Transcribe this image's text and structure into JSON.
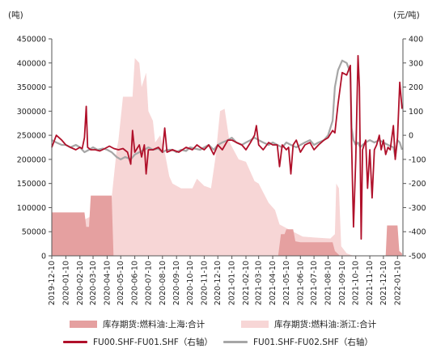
{
  "chart_data": {
    "type": "line",
    "left_unit": "(吨)",
    "right_unit": "(元/吨)",
    "left_axis": {
      "min": 0,
      "max": 450000,
      "ticks": [
        0,
        50000,
        100000,
        150000,
        200000,
        250000,
        300000,
        350000,
        400000,
        450000
      ]
    },
    "right_axis": {
      "min": -500,
      "max": 400,
      "ticks": [
        -500,
        -400,
        -300,
        -200,
        -100,
        0,
        100,
        200,
        300,
        400
      ]
    },
    "x_ticks": [
      "2019-12-10",
      "2020-01-10",
      "2020-02-10",
      "2020-03-10",
      "2020-04-10",
      "2020-05-10",
      "2020-06-10",
      "2020-07-10",
      "2020-08-10",
      "2020-09-10",
      "2020-10-10",
      "2020-11-10",
      "2020-12-10",
      "2021-01-10",
      "2021-02-10",
      "2021-03-10",
      "2021-04-10",
      "2021-05-10",
      "2021-06-10",
      "2021-07-10",
      "2021-08-10",
      "2021-09-10",
      "2021-10-10",
      "2021-11-10",
      "2021-12-10",
      "2022-01-10"
    ],
    "grid": false,
    "legend_position": "bottom",
    "series": [
      {
        "name": "库存期货:燃料油:上海:合计",
        "axis": "left",
        "kind": "area",
        "color": "#e5a0a0",
        "points": [
          [
            "2019-12-10",
            90000
          ],
          [
            "2020-02-20",
            90000
          ],
          [
            "2020-02-24",
            60000
          ],
          [
            "2020-03-01",
            60000
          ],
          [
            "2020-03-05",
            125000
          ],
          [
            "2020-04-20",
            125000
          ],
          [
            "2020-04-24",
            0
          ],
          [
            "2021-04-22",
            0
          ],
          [
            "2021-04-28",
            45000
          ],
          [
            "2021-05-06",
            45000
          ],
          [
            "2021-05-10",
            55000
          ],
          [
            "2021-05-25",
            55000
          ],
          [
            "2021-05-30",
            30000
          ],
          [
            "2021-06-10",
            28000
          ],
          [
            "2021-08-20",
            28000
          ],
          [
            "2021-08-25",
            10000
          ],
          [
            "2021-09-05",
            0
          ],
          [
            "2021-12-15",
            0
          ],
          [
            "2021-12-18",
            63000
          ],
          [
            "2022-01-10",
            63000
          ],
          [
            "2022-01-14",
            10000
          ],
          [
            "2022-01-20",
            5000
          ]
        ]
      },
      {
        "name": "库存期货:燃料油:浙江:合计",
        "axis": "left",
        "kind": "area",
        "color": "#f7d6d6",
        "points": [
          [
            "2019-12-10",
            0
          ],
          [
            "2020-01-20",
            0
          ],
          [
            "2020-01-25",
            60000
          ],
          [
            "2020-02-10",
            70000
          ],
          [
            "2020-03-01",
            80000
          ],
          [
            "2020-04-10",
            90000
          ],
          [
            "2020-04-20",
            120000
          ],
          [
            "2020-05-01",
            220000
          ],
          [
            "2020-05-05",
            240000
          ],
          [
            "2020-05-15",
            330000
          ],
          [
            "2020-06-05",
            330000
          ],
          [
            "2020-06-10",
            410000
          ],
          [
            "2020-06-20",
            400000
          ],
          [
            "2020-06-25",
            350000
          ],
          [
            "2020-07-05",
            380000
          ],
          [
            "2020-07-10",
            300000
          ],
          [
            "2020-07-20",
            280000
          ],
          [
            "2020-07-25",
            235000
          ],
          [
            "2020-08-05",
            250000
          ],
          [
            "2020-08-15",
            215000
          ],
          [
            "2020-08-25",
            165000
          ],
          [
            "2020-09-01",
            150000
          ],
          [
            "2020-09-20",
            140000
          ],
          [
            "2020-10-15",
            140000
          ],
          [
            "2020-10-25",
            160000
          ],
          [
            "2020-11-10",
            145000
          ],
          [
            "2020-11-25",
            140000
          ],
          [
            "2020-12-05",
            205000
          ],
          [
            "2020-12-15",
            300000
          ],
          [
            "2020-12-25",
            305000
          ],
          [
            "2021-01-05",
            235000
          ],
          [
            "2021-01-25",
            200000
          ],
          [
            "2021-02-10",
            195000
          ],
          [
            "2021-03-01",
            155000
          ],
          [
            "2021-03-10",
            150000
          ],
          [
            "2021-04-01",
            110000
          ],
          [
            "2021-04-15",
            95000
          ],
          [
            "2021-04-25",
            65000
          ],
          [
            "2021-05-15",
            55000
          ],
          [
            "2021-06-15",
            40000
          ],
          [
            "2021-07-10",
            38000
          ],
          [
            "2021-08-15",
            36000
          ],
          [
            "2021-08-25",
            45000
          ],
          [
            "2021-08-28",
            150000
          ],
          [
            "2021-09-03",
            140000
          ],
          [
            "2021-09-08",
            20000
          ],
          [
            "2021-09-20",
            5000
          ],
          [
            "2021-10-05",
            0
          ],
          [
            "2022-01-20",
            0
          ]
        ]
      },
      {
        "name": "FU00.SHF-FU01.SHF（右轴）",
        "axis": "right",
        "kind": "line",
        "color": "#b0102a",
        "points": [
          [
            "2019-12-10",
            -50
          ],
          [
            "2019-12-20",
            0
          ],
          [
            "2020-01-01",
            -20
          ],
          [
            "2020-01-10",
            -40
          ],
          [
            "2020-01-20",
            -50
          ],
          [
            "2020-02-01",
            -60
          ],
          [
            "2020-02-10",
            -50
          ],
          [
            "2020-02-15",
            -55
          ],
          [
            "2020-02-20",
            -10
          ],
          [
            "2020-02-24",
            120
          ],
          [
            "2020-02-27",
            -50
          ],
          [
            "2020-03-05",
            -60
          ],
          [
            "2020-03-15",
            -60
          ],
          [
            "2020-03-25",
            -65
          ],
          [
            "2020-04-05",
            -55
          ],
          [
            "2020-04-15",
            -45
          ],
          [
            "2020-04-25",
            -55
          ],
          [
            "2020-05-05",
            -60
          ],
          [
            "2020-05-15",
            -55
          ],
          [
            "2020-05-25",
            -70
          ],
          [
            "2020-06-01",
            -120
          ],
          [
            "2020-06-05",
            20
          ],
          [
            "2020-06-10",
            -70
          ],
          [
            "2020-06-20",
            -40
          ],
          [
            "2020-06-25",
            -90
          ],
          [
            "2020-07-01",
            -40
          ],
          [
            "2020-07-05",
            -160
          ],
          [
            "2020-07-10",
            -60
          ],
          [
            "2020-07-20",
            -60
          ],
          [
            "2020-08-01",
            -50
          ],
          [
            "2020-08-10",
            -70
          ],
          [
            "2020-08-15",
            30
          ],
          [
            "2020-08-20",
            -70
          ],
          [
            "2020-09-01",
            -60
          ],
          [
            "2020-09-15",
            -70
          ],
          [
            "2020-10-01",
            -50
          ],
          [
            "2020-10-15",
            -60
          ],
          [
            "2020-10-25",
            -40
          ],
          [
            "2020-11-01",
            -50
          ],
          [
            "2020-11-10",
            -60
          ],
          [
            "2020-11-20",
            -40
          ],
          [
            "2020-12-01",
            -80
          ],
          [
            "2020-12-10",
            -40
          ],
          [
            "2020-12-20",
            -60
          ],
          [
            "2021-01-01",
            -20
          ],
          [
            "2021-01-10",
            -20
          ],
          [
            "2021-01-20",
            -30
          ],
          [
            "2021-02-01",
            -40
          ],
          [
            "2021-02-10",
            -60
          ],
          [
            "2021-02-20",
            -30
          ],
          [
            "2021-03-01",
            0
          ],
          [
            "2021-03-05",
            40
          ],
          [
            "2021-03-10",
            -40
          ],
          [
            "2021-03-20",
            -60
          ],
          [
            "2021-04-01",
            -30
          ],
          [
            "2021-04-10",
            -40
          ],
          [
            "2021-04-20",
            -40
          ],
          [
            "2021-04-25",
            -130
          ],
          [
            "2021-05-01",
            -40
          ],
          [
            "2021-05-10",
            -60
          ],
          [
            "2021-05-15",
            -50
          ],
          [
            "2021-05-20",
            -160
          ],
          [
            "2021-05-25",
            -40
          ],
          [
            "2021-06-01",
            -20
          ],
          [
            "2021-06-10",
            -70
          ],
          [
            "2021-06-20",
            -40
          ],
          [
            "2021-07-01",
            -30
          ],
          [
            "2021-07-10",
            -60
          ],
          [
            "2021-07-20",
            -40
          ],
          [
            "2021-08-01",
            -20
          ],
          [
            "2021-08-10",
            -10
          ],
          [
            "2021-08-20",
            20
          ],
          [
            "2021-08-25",
            10
          ],
          [
            "2021-09-01",
            130
          ],
          [
            "2021-09-10",
            260
          ],
          [
            "2021-09-20",
            250
          ],
          [
            "2021-09-28",
            290
          ],
          [
            "2021-10-01",
            -40
          ],
          [
            "2021-10-05",
            -380
          ],
          [
            "2021-10-10",
            -100
          ],
          [
            "2021-10-15",
            330
          ],
          [
            "2021-10-18",
            200
          ],
          [
            "2021-10-22",
            -430
          ],
          [
            "2021-10-25",
            -60
          ],
          [
            "2021-11-01",
            -20
          ],
          [
            "2021-11-05",
            -220
          ],
          [
            "2021-11-10",
            -60
          ],
          [
            "2021-11-15",
            -260
          ],
          [
            "2021-11-20",
            -60
          ],
          [
            "2021-11-25",
            -40
          ],
          [
            "2021-12-01",
            0
          ],
          [
            "2021-12-05",
            -60
          ],
          [
            "2021-12-10",
            -20
          ],
          [
            "2021-12-15",
            -80
          ],
          [
            "2021-12-20",
            -50
          ],
          [
            "2021-12-25",
            -60
          ],
          [
            "2022-01-01",
            40
          ],
          [
            "2022-01-05",
            -100
          ],
          [
            "2022-01-10",
            -10
          ],
          [
            "2022-01-15",
            220
          ],
          [
            "2022-01-20",
            110
          ]
        ]
      },
      {
        "name": "FU01.SHF-FU02.SHF（右轴）",
        "axis": "right",
        "kind": "line",
        "color": "#a6a6a6",
        "points": [
          [
            "2019-12-10",
            -20
          ],
          [
            "2019-12-20",
            -30
          ],
          [
            "2020-01-01",
            -40
          ],
          [
            "2020-01-10",
            -40
          ],
          [
            "2020-01-20",
            -50
          ],
          [
            "2020-02-01",
            -40
          ],
          [
            "2020-02-10",
            -50
          ],
          [
            "2020-02-20",
            -70
          ],
          [
            "2020-03-01",
            -60
          ],
          [
            "2020-03-10",
            -50
          ],
          [
            "2020-03-20",
            -60
          ],
          [
            "2020-04-01",
            -55
          ],
          [
            "2020-04-10",
            -60
          ],
          [
            "2020-04-20",
            -70
          ],
          [
            "2020-05-01",
            -90
          ],
          [
            "2020-05-10",
            -100
          ],
          [
            "2020-05-20",
            -90
          ],
          [
            "2020-06-01",
            -100
          ],
          [
            "2020-06-10",
            -80
          ],
          [
            "2020-06-20",
            -70
          ],
          [
            "2020-07-01",
            -60
          ],
          [
            "2020-07-10",
            -50
          ],
          [
            "2020-07-20",
            -60
          ],
          [
            "2020-08-01",
            -55
          ],
          [
            "2020-08-10",
            -70
          ],
          [
            "2020-08-20",
            -60
          ],
          [
            "2020-09-01",
            -60
          ],
          [
            "2020-09-10",
            -70
          ],
          [
            "2020-09-20",
            -60
          ],
          [
            "2020-10-01",
            -65
          ],
          [
            "2020-10-10",
            -50
          ],
          [
            "2020-10-20",
            -55
          ],
          [
            "2020-11-01",
            -60
          ],
          [
            "2020-11-10",
            -50
          ],
          [
            "2020-11-20",
            -40
          ],
          [
            "2020-12-01",
            -60
          ],
          [
            "2020-12-10",
            -40
          ],
          [
            "2020-12-20",
            -30
          ],
          [
            "2021-01-01",
            -20
          ],
          [
            "2021-01-10",
            -10
          ],
          [
            "2021-01-20",
            -30
          ],
          [
            "2021-02-01",
            -40
          ],
          [
            "2021-02-10",
            -30
          ],
          [
            "2021-02-20",
            -20
          ],
          [
            "2021-03-01",
            -10
          ],
          [
            "2021-03-10",
            -20
          ],
          [
            "2021-03-20",
            -30
          ],
          [
            "2021-04-01",
            -40
          ],
          [
            "2021-04-10",
            -30
          ],
          [
            "2021-04-20",
            -40
          ],
          [
            "2021-05-01",
            -50
          ],
          [
            "2021-05-10",
            -30
          ],
          [
            "2021-05-20",
            -40
          ],
          [
            "2021-06-01",
            -50
          ],
          [
            "2021-06-10",
            -40
          ],
          [
            "2021-06-20",
            -30
          ],
          [
            "2021-07-01",
            -20
          ],
          [
            "2021-07-10",
            -40
          ],
          [
            "2021-07-20",
            -30
          ],
          [
            "2021-08-01",
            -20
          ],
          [
            "2021-08-10",
            0
          ],
          [
            "2021-08-20",
            60
          ],
          [
            "2021-08-25",
            200
          ],
          [
            "2021-09-01",
            270
          ],
          [
            "2021-09-10",
            310
          ],
          [
            "2021-09-20",
            300
          ],
          [
            "2021-09-28",
            260
          ],
          [
            "2021-10-01",
            30
          ],
          [
            "2021-10-05",
            -20
          ],
          [
            "2021-10-10",
            -40
          ],
          [
            "2021-10-15",
            -30
          ],
          [
            "2021-10-20",
            -50
          ],
          [
            "2021-10-25",
            -40
          ],
          [
            "2021-11-01",
            -30
          ],
          [
            "2021-11-10",
            -20
          ],
          [
            "2021-11-20",
            -30
          ],
          [
            "2021-12-01",
            -20
          ],
          [
            "2021-12-10",
            -30
          ],
          [
            "2021-12-20",
            -40
          ],
          [
            "2022-01-01",
            -50
          ],
          [
            "2022-01-05",
            -90
          ],
          [
            "2022-01-10",
            -20
          ],
          [
            "2022-01-15",
            -30
          ],
          [
            "2022-01-20",
            -60
          ]
        ]
      }
    ]
  }
}
